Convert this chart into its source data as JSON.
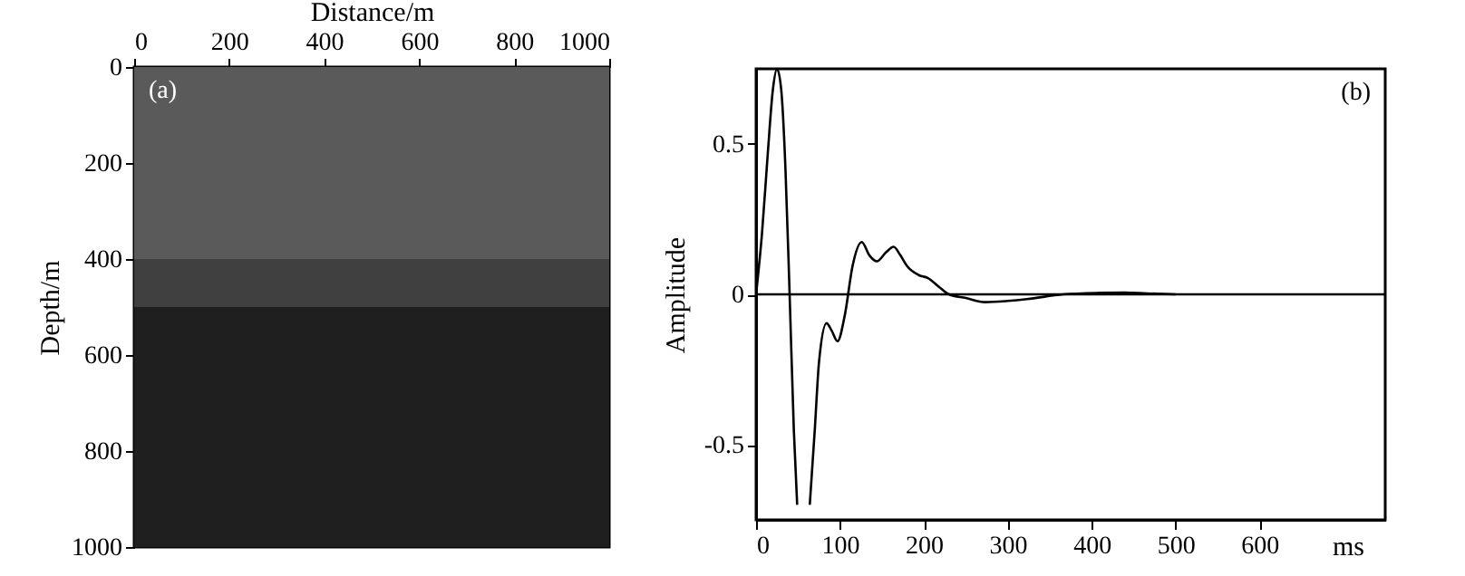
{
  "chart_data": [
    {
      "type": "area",
      "stacked": true,
      "xlabel": "Distance/m",
      "ylabel": "Depth/m",
      "xlim": [
        0,
        1000
      ],
      "xticks": [
        0,
        200,
        400,
        600,
        800,
        1000
      ],
      "ylim": [
        1000,
        0
      ],
      "yticks": [
        0,
        200,
        400,
        600,
        800,
        1000
      ],
      "x": [
        0,
        1000
      ],
      "series": [
        {
          "color": "#5a5a5a",
          "values": [
            400,
            400
          ]
        },
        {
          "color": "#404040",
          "values": [
            100,
            100
          ]
        },
        {
          "color": "#1f1f1f",
          "values": [
            500,
            500
          ]
        }
      ],
      "annotations": [
        "(a)"
      ]
    },
    {
      "type": "line",
      "xlabel": "ms",
      "ylabel": "Amplitude",
      "xlim": [
        0,
        750
      ],
      "xticks": [
        0,
        100,
        200,
        300,
        400,
        500,
        600
      ],
      "ylim": [
        -0.75,
        0.75
      ],
      "yticks": [
        -0.5,
        0,
        0.5
      ],
      "x": [
        0,
        7,
        14,
        20,
        25,
        30,
        35,
        40,
        45,
        49,
        57,
        64,
        70,
        75,
        84,
        90,
        97,
        106,
        115,
        126,
        135,
        144,
        155,
        164,
        172,
        180,
        194,
        205,
        218,
        230,
        250,
        273,
        300,
        323,
        366,
        410,
        440,
        466,
        500
      ],
      "series": [
        {
          "color": "#000000",
          "values": [
            0,
            0.2,
            0.47,
            0.68,
            0.75,
            0.68,
            0.42,
            0,
            -0.45,
            -0.7,
            null,
            -0.7,
            -0.45,
            -0.226,
            -0.096,
            -0.12,
            -0.156,
            -0.066,
            0.094,
            0.174,
            0.13,
            0.11,
            0.14,
            0.158,
            0.13,
            0.094,
            0.064,
            0.054,
            0.025,
            0,
            -0.012,
            -0.026,
            -0.022,
            -0.016,
            0,
            0.005,
            0.006,
            0.003,
            0
          ]
        }
      ],
      "ref_lines": [
        {
          "axis": "y",
          "value": 0,
          "color": "#000000"
        }
      ],
      "annotations": [
        "(b)"
      ]
    }
  ]
}
